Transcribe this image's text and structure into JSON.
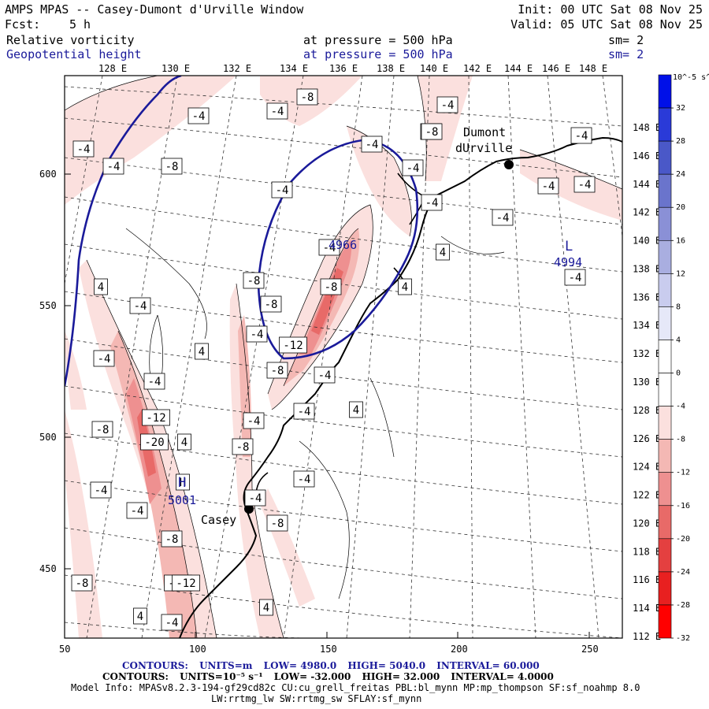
{
  "header": {
    "title": "AMPS MPAS -- Casey-Dumont d'Urville Window",
    "fcst_label": "Fcst:",
    "fcst_value": "5 h",
    "init": "Init: 00 UTC Sat 08 Nov 25",
    "valid": "Valid: 05 UTC Sat 08 Nov 25",
    "field1": {
      "name": "Relative vorticity",
      "level": "at pressure =  500 hPa",
      "smooth": "sm= 2"
    },
    "field2": {
      "name": "Geopotential height",
      "level": "at pressure =  500 hPa",
      "smooth": "sm= 2"
    }
  },
  "map": {
    "top_lon_labels": [
      "128 E",
      "130 E",
      "132 E",
      "134 E",
      "136 E",
      "138 E",
      "140 E",
      "142 E",
      "144 E",
      "146 E",
      "148 E"
    ],
    "right_lat_labels": [
      "148 E",
      "146 E",
      "144 E",
      "142 E",
      "140 E",
      "138 E",
      "136 E",
      "134 E",
      "132 E",
      "130 E",
      "128 E",
      "126 E",
      "124 E",
      "122 E",
      "120 E",
      "118 E",
      "116 E",
      "114 E",
      "112 E"
    ],
    "y_ticks": [
      "600",
      "550",
      "500",
      "450"
    ],
    "x_ticks": [
      "50",
      "100",
      "150",
      "200",
      "250"
    ],
    "places": [
      {
        "name": "Dumont",
        "name2": "dUrville"
      },
      {
        "name": "Casey"
      }
    ],
    "highs_lows": [
      {
        "symbol": "L",
        "value": "4994"
      },
      {
        "symbol": "H",
        "value": "5001"
      },
      {
        "symbol": "",
        "value": "4966"
      }
    ],
    "contour_labels": [
      "-4",
      "-8",
      "-4",
      "-4",
      "-4",
      "-4",
      "-4",
      "-8",
      "-4",
      "-4",
      "-4",
      "-4",
      "-4",
      "-4",
      "-4",
      "4",
      "-4",
      "-8",
      "4",
      "-4",
      "-4",
      "-8",
      "-8",
      "-12",
      "-4",
      "-8",
      "-4",
      "-12",
      "-20",
      "-8",
      "4",
      "-4",
      "4",
      "-8",
      "-4",
      "-4",
      "H",
      "-4",
      "-4",
      "-8",
      "-8",
      "-12",
      "4",
      "4",
      "-4",
      "4",
      "-4",
      "4",
      "-8",
      "-4",
      "-4",
      "-12",
      "-8",
      "-4"
    ],
    "colorbar": {
      "unit": "10^-5 s^-1",
      "labels": [
        "32",
        "28",
        "24",
        "20",
        "16",
        "12",
        "8",
        "4",
        "0",
        "-4",
        "-8",
        "-12",
        "-16",
        "-20",
        "-24",
        "-28",
        "-32"
      ],
      "colors": [
        "#0010e8",
        "#2a3ad8",
        "#4a58c8",
        "#6a74cc",
        "#8a90d6",
        "#a9aee0",
        "#c9ccee",
        "#e6e8f8",
        "#ffffff",
        "#ffffff",
        "#fbe0de",
        "#f4b8b4",
        "#ee9090",
        "#e86a68",
        "#e44040",
        "#e82020",
        "#ff0000"
      ]
    }
  },
  "footer": {
    "contours1": {
      "label": "CONTOURS:",
      "units": "UNITS=m",
      "low": "LOW=  4980.0",
      "high": "HIGH=  5040.0",
      "interval": "INTERVAL=   60.000"
    },
    "contours2": {
      "label": "CONTOURS:",
      "units": "UNITS=10⁻⁵ s⁻¹",
      "low": "LOW= -32.000",
      "high": "HIGH= 32.000",
      "interval": "INTERVAL=   4.0000"
    },
    "model_info": "Model Info: MPASv8.2.3-194-gf29cd82c CU:cu_grell_freitas PBL:bl_mynn MP:mp_thompson SF:sf_noahmp 8.0",
    "model_info2": "LW:rrtmg_lw SW:rrtmg_sw SFLAY:sf_mynn"
  }
}
